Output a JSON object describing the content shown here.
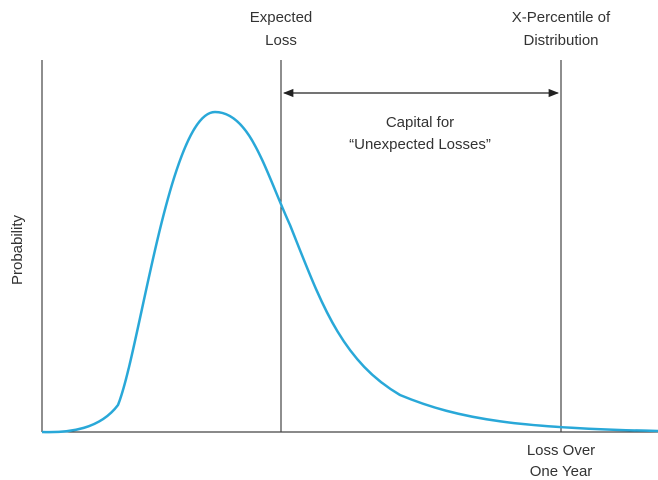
{
  "labels": {
    "expected_loss": [
      "Expected",
      "Loss"
    ],
    "percentile": [
      "X-Percentile of",
      "Distribution"
    ],
    "capital": [
      "Capital for",
      "“Unexpected Losses”"
    ],
    "y_axis": "Probability",
    "x_axis": [
      "Loss Over",
      "One Year"
    ]
  }
}
